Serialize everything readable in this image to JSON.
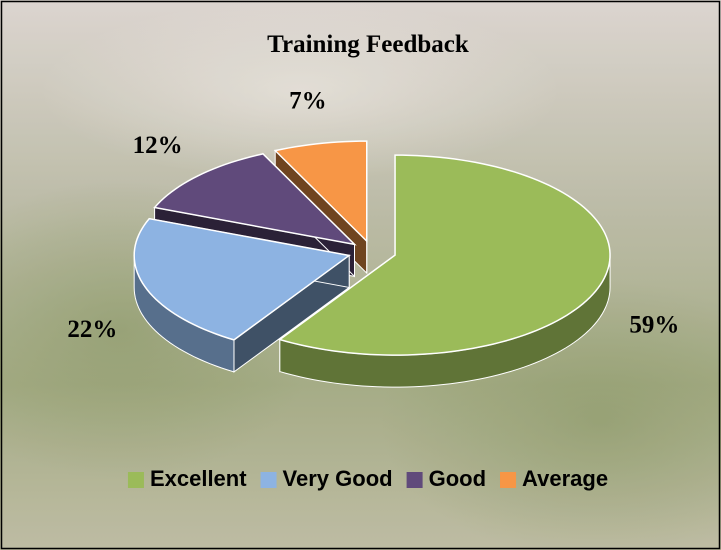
{
  "chart_data": {
    "type": "pie",
    "title": "Training Feedback",
    "categories": [
      "Excellent",
      "Very Good",
      "Good",
      "Average"
    ],
    "values": [
      59,
      22,
      12,
      7
    ],
    "value_labels": [
      "59%",
      "22%",
      "12%",
      "7%"
    ],
    "colors": [
      "#9bbb59",
      "#8db3e2",
      "#604a7b",
      "#f79646"
    ],
    "legend": "bottom"
  }
}
